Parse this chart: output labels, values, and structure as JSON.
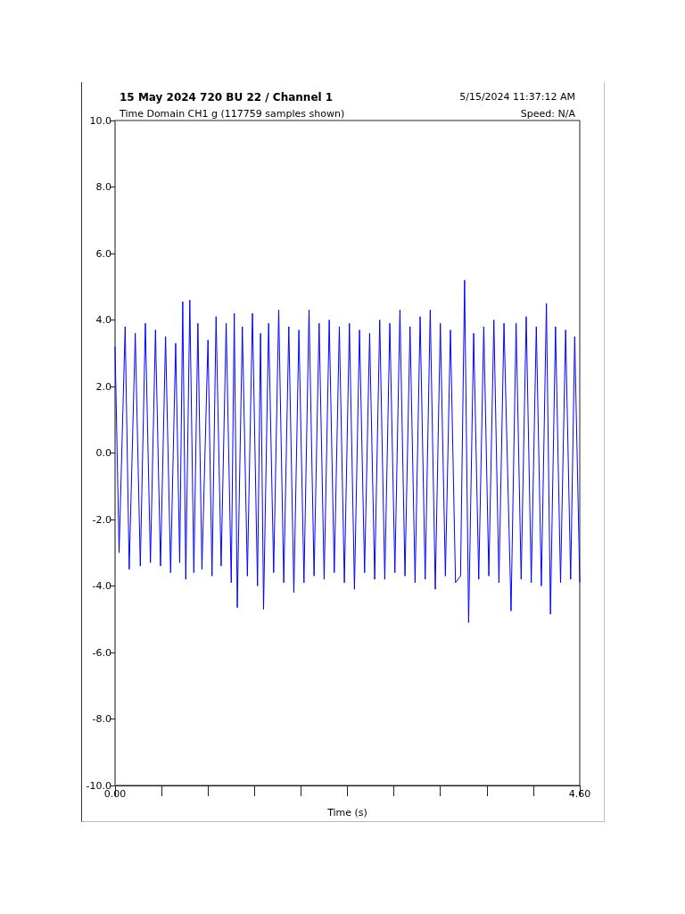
{
  "chart_data": {
    "type": "line",
    "title": "15 May 2024 720 BU 22 / Channel 1",
    "subtitle": "Time Domain CH1 g (117759 samples shown)",
    "annotations": [
      "5/15/2024 11:37:12 AM",
      "Speed: N/A"
    ],
    "xlabel": "Time (s)",
    "xlim": [
      0,
      4.6
    ],
    "xticks": [
      {
        "value": 0,
        "label": "0.00"
      },
      {
        "value": 0.46,
        "label": null
      },
      {
        "value": 0.92,
        "label": null
      },
      {
        "value": 1.38,
        "label": null
      },
      {
        "value": 1.84,
        "label": null
      },
      {
        "value": 2.3,
        "label": null
      },
      {
        "value": 2.76,
        "label": null
      },
      {
        "value": 3.22,
        "label": null
      },
      {
        "value": 3.68,
        "label": null
      },
      {
        "value": 4.14,
        "label": null
      },
      {
        "value": 4.6,
        "label": "4.60"
      }
    ],
    "ylim": [
      -10,
      10
    ],
    "yticks": [
      {
        "value": -10,
        "label": "-10.0"
      },
      {
        "value": -8,
        "label": "-8.0"
      },
      {
        "value": -6,
        "label": "-6.0"
      },
      {
        "value": -4,
        "label": "-4.0"
      },
      {
        "value": -2,
        "label": "-2.0"
      },
      {
        "value": 0,
        "label": "0.0"
      },
      {
        "value": 2,
        "label": "2.0"
      },
      {
        "value": 4,
        "label": "4.0"
      },
      {
        "value": 6,
        "label": "6.0"
      },
      {
        "value": 8,
        "label": "8.0"
      },
      {
        "value": 10,
        "label": "10.0"
      }
    ],
    "grid": false,
    "series": [
      {
        "color": "#0000ff",
        "x": [
          0,
          0.04,
          0.1,
          0.14,
          0.2,
          0.25,
          0.3,
          0.35,
          0.4,
          0.45,
          0.5,
          0.55,
          0.6,
          0.64,
          0.67,
          0.7,
          0.74,
          0.78,
          0.82,
          0.86,
          0.92,
          0.96,
          1.0,
          1.05,
          1.1,
          1.15,
          1.18,
          1.21,
          1.26,
          1.31,
          1.36,
          1.41,
          1.44,
          1.47,
          1.52,
          1.57,
          1.62,
          1.67,
          1.72,
          1.77,
          1.82,
          1.87,
          1.92,
          1.97,
          2.02,
          2.07,
          2.12,
          2.17,
          2.22,
          2.27,
          2.32,
          2.37,
          2.42,
          2.47,
          2.52,
          2.57,
          2.62,
          2.67,
          2.72,
          2.77,
          2.82,
          2.87,
          2.92,
          2.97,
          3.02,
          3.07,
          3.12,
          3.17,
          3.22,
          3.27,
          3.32,
          3.37,
          3.42,
          3.46,
          3.5,
          3.55,
          3.6,
          3.65,
          3.7,
          3.75,
          3.8,
          3.85,
          3.92,
          3.97,
          4.02,
          4.07,
          4.12,
          4.17,
          4.22,
          4.27,
          4.31,
          4.36,
          4.41,
          4.46,
          4.51,
          4.55,
          4.6
        ],
        "values": [
          3.2,
          -3.0,
          3.8,
          -3.5,
          3.6,
          -3.4,
          3.9,
          -3.3,
          3.7,
          -3.4,
          3.5,
          -3.6,
          3.3,
          -3.3,
          4.55,
          -3.8,
          4.6,
          -3.6,
          3.9,
          -3.5,
          3.4,
          -3.7,
          4.1,
          -3.4,
          3.9,
          -3.9,
          4.2,
          -4.65,
          3.8,
          -3.7,
          4.2,
          -4.0,
          3.6,
          -4.7,
          3.9,
          -3.6,
          4.3,
          -3.9,
          3.8,
          -4.2,
          3.7,
          -3.9,
          4.3,
          -3.7,
          3.9,
          -3.8,
          4.0,
          -3.6,
          3.8,
          -3.9,
          3.9,
          -4.1,
          3.7,
          -3.6,
          3.6,
          -3.8,
          4.0,
          -3.8,
          3.9,
          -3.6,
          4.3,
          -3.7,
          3.8,
          -3.9,
          4.1,
          -3.8,
          4.3,
          -4.1,
          3.9,
          -3.7,
          3.7,
          -3.9,
          -3.7,
          5.2,
          -5.1,
          3.6,
          -3.8,
          3.8,
          -3.7,
          4.0,
          -3.9,
          3.9,
          -4.75,
          3.9,
          -3.8,
          4.1,
          -3.9,
          3.8,
          -4.0,
          4.5,
          -4.85,
          3.8,
          -3.9,
          3.7,
          -3.8,
          3.5,
          -3.9
        ]
      }
    ]
  }
}
